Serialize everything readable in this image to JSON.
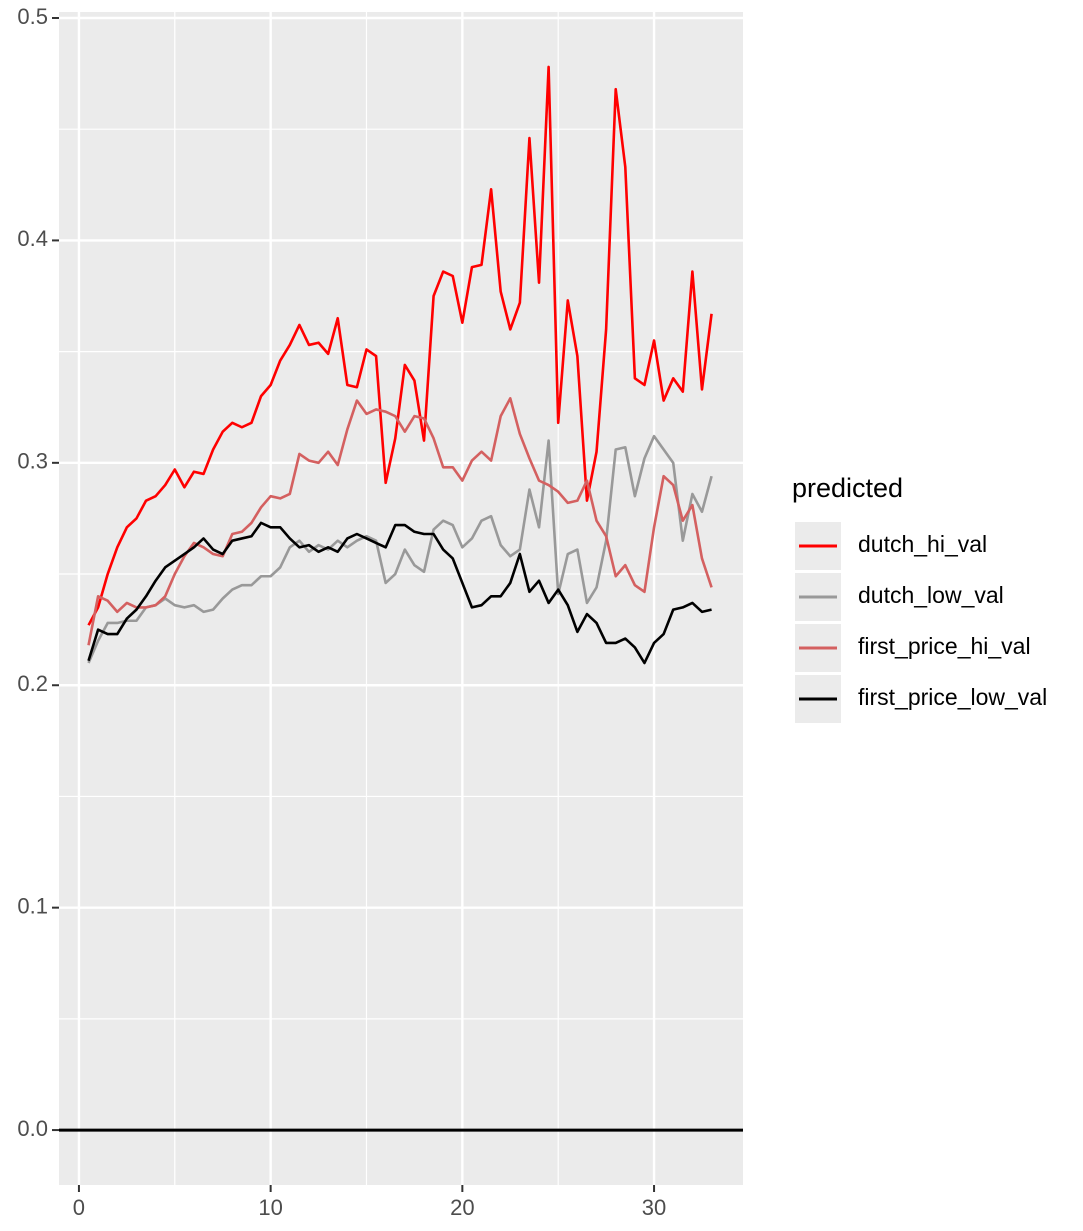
{
  "chart_data": {
    "type": "line",
    "legend_title": "predicted",
    "legend_position": "right",
    "x": [
      0.5,
      1,
      1.5,
      2,
      2.5,
      3,
      3.5,
      4,
      4.5,
      5,
      5.5,
      6,
      6.5,
      7,
      7.5,
      8,
      8.5,
      9,
      9.5,
      10,
      10.5,
      11,
      11.5,
      12,
      12.5,
      13,
      13.5,
      14,
      14.5,
      15,
      15.5,
      16,
      16.5,
      17,
      17.5,
      18,
      18.5,
      19,
      19.5,
      20,
      20.5,
      21,
      21.5,
      22,
      22.5,
      23,
      23.5,
      24,
      24.5,
      25,
      25.5,
      26,
      26.5,
      27,
      27.5,
      28,
      28.5,
      29,
      29.5,
      30,
      30.5,
      31,
      31.5,
      32,
      32.5,
      33
    ],
    "series": [
      {
        "name": "dutch_hi_val",
        "color": "#ff0000",
        "values": [
          0.227,
          0.235,
          0.25,
          0.262,
          0.271,
          0.275,
          0.283,
          0.285,
          0.29,
          0.297,
          0.289,
          0.296,
          0.295,
          0.306,
          0.314,
          0.318,
          0.316,
          0.318,
          0.33,
          0.335,
          0.346,
          0.353,
          0.362,
          0.353,
          0.354,
          0.349,
          0.365,
          0.335,
          0.334,
          0.351,
          0.348,
          0.291,
          0.311,
          0.344,
          0.337,
          0.31,
          0.375,
          0.386,
          0.384,
          0.363,
          0.388,
          0.389,
          0.423,
          0.377,
          0.36,
          0.372,
          0.446,
          0.381,
          0.478,
          0.318,
          0.373,
          0.348,
          0.283,
          0.305,
          0.36,
          0.468,
          0.433,
          0.338,
          0.335,
          0.355,
          0.328,
          0.338,
          0.332,
          0.386,
          0.333,
          0.367
        ]
      },
      {
        "name": "dutch_low_val",
        "color": "#999999",
        "values": [
          0.21,
          0.22,
          0.228,
          0.228,
          0.229,
          0.229,
          0.235,
          0.236,
          0.239,
          0.236,
          0.235,
          0.236,
          0.233,
          0.234,
          0.239,
          0.243,
          0.245,
          0.245,
          0.249,
          0.249,
          0.253,
          0.262,
          0.265,
          0.26,
          0.263,
          0.261,
          0.265,
          0.262,
          0.265,
          0.267,
          0.265,
          0.246,
          0.25,
          0.261,
          0.254,
          0.251,
          0.27,
          0.274,
          0.272,
          0.262,
          0.266,
          0.274,
          0.276,
          0.263,
          0.258,
          0.261,
          0.288,
          0.271,
          0.31,
          0.241,
          0.259,
          0.261,
          0.237,
          0.244,
          0.265,
          0.306,
          0.307,
          0.285,
          0.302,
          0.312,
          0.306,
          0.3,
          0.265,
          0.286,
          0.278,
          0.294
        ]
      },
      {
        "name": "first_price_hi_val",
        "color": "#d46060",
        "values": [
          0.218,
          0.24,
          0.238,
          0.233,
          0.237,
          0.235,
          0.235,
          0.236,
          0.24,
          0.25,
          0.258,
          0.264,
          0.262,
          0.259,
          0.258,
          0.268,
          0.269,
          0.273,
          0.28,
          0.285,
          0.284,
          0.286,
          0.304,
          0.301,
          0.3,
          0.305,
          0.299,
          0.315,
          0.328,
          0.322,
          0.324,
          0.323,
          0.321,
          0.314,
          0.321,
          0.32,
          0.311,
          0.298,
          0.298,
          0.292,
          0.301,
          0.305,
          0.301,
          0.321,
          0.329,
          0.313,
          0.302,
          0.292,
          0.29,
          0.287,
          0.282,
          0.283,
          0.292,
          0.274,
          0.267,
          0.249,
          0.254,
          0.245,
          0.242,
          0.271,
          0.294,
          0.29,
          0.274,
          0.281,
          0.257,
          0.244
        ]
      },
      {
        "name": "first_price_low_val",
        "color": "#000000",
        "values": [
          0.211,
          0.225,
          0.223,
          0.223,
          0.23,
          0.234,
          0.24,
          0.247,
          0.253,
          0.256,
          0.259,
          0.262,
          0.266,
          0.261,
          0.259,
          0.265,
          0.266,
          0.267,
          0.273,
          0.271,
          0.271,
          0.266,
          0.262,
          0.263,
          0.26,
          0.262,
          0.26,
          0.266,
          0.268,
          0.266,
          0.264,
          0.262,
          0.272,
          0.272,
          0.269,
          0.268,
          0.268,
          0.261,
          0.257,
          0.246,
          0.235,
          0.236,
          0.24,
          0.24,
          0.246,
          0.259,
          0.242,
          0.247,
          0.237,
          0.243,
          0.236,
          0.224,
          0.232,
          0.228,
          0.219,
          0.219,
          0.221,
          0.217,
          0.21,
          0.219,
          0.223,
          0.234,
          0.235,
          0.237,
          0.233,
          0.234
        ]
      }
    ],
    "hline": 0,
    "xlim": [
      -1.04,
      34.64
    ],
    "ylim": [
      -0.0247,
      0.5027
    ],
    "xticks": [
      0,
      10,
      20,
      30
    ],
    "yticks": [
      {
        "value": 0,
        "label": "0.0"
      },
      0.1,
      0.2,
      0.3,
      0.4,
      0.5
    ],
    "grid": true,
    "minor_grid": true
  }
}
